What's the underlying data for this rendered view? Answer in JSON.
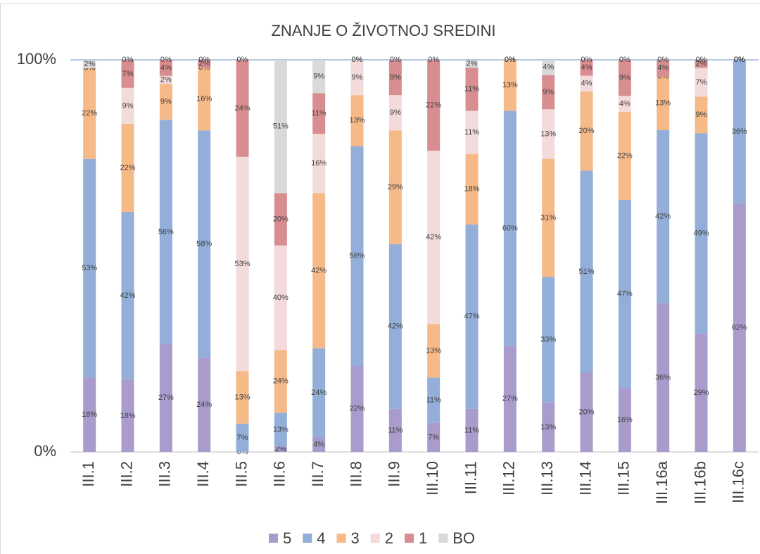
{
  "chart_data": {
    "type": "stacked100",
    "title": "ZNANJE O ŽIVOTNOJ SREDINI",
    "categories": [
      "III.1",
      "III.2",
      "III.3",
      "III.4",
      "III.5",
      "III.6",
      "III.7",
      "III.8",
      "III.9",
      "III.10",
      "III.11",
      "III.12",
      "III.13",
      "III.14",
      "III.15",
      "III.16a",
      "III.16b",
      "III.16c"
    ],
    "series": [
      {
        "name": "5",
        "color": "#a99bcb",
        "values": [
          18,
          18,
          27,
          24,
          0,
          2,
          4,
          22,
          11,
          7,
          11,
          27,
          13,
          20,
          16,
          36,
          29,
          62
        ]
      },
      {
        "name": "4",
        "color": "#93afd9",
        "values": [
          53,
          42,
          56,
          58,
          7,
          13,
          24,
          56,
          42,
          11,
          47,
          60,
          33,
          51,
          47,
          42,
          49,
          36
        ]
      },
      {
        "name": "3",
        "color": "#f6b988",
        "values": [
          22,
          22,
          9,
          16,
          13,
          24,
          42,
          13,
          29,
          13,
          18,
          13,
          31,
          20,
          22,
          13,
          9,
          0
        ]
      },
      {
        "name": "2",
        "color": "#f3dadb",
        "values": [
          0,
          9,
          2,
          0,
          53,
          40,
          16,
          9,
          9,
          42,
          11,
          0,
          13,
          4,
          4,
          0,
          7,
          0
        ]
      },
      {
        "name": "1",
        "color": "#d88e90",
        "values": [
          0,
          7,
          4,
          2,
          24,
          20,
          11,
          0,
          9,
          22,
          11,
          0,
          9,
          4,
          9,
          4,
          2,
          0
        ]
      },
      {
        "name": "BO",
        "color": "#d9d9d9",
        "values": [
          2,
          0,
          0,
          0,
          0,
          51,
          9,
          0,
          0,
          0,
          2,
          0,
          4,
          0,
          0,
          0,
          0,
          0
        ]
      }
    ],
    "value_labels": [
      [
        "18%",
        "18%",
        "27%",
        "24%",
        "0%",
        "2%",
        "4%",
        "22%",
        "11%",
        "7%",
        "11%",
        "27%",
        "13%",
        "20%",
        "16%",
        "36%",
        "29%",
        "62%"
      ],
      [
        "53%",
        "42%",
        "56%",
        "58%",
        "7%",
        "13%",
        "24%",
        "56%",
        "42%",
        "11%",
        "47%",
        "60%",
        "33%",
        "51%",
        "47%",
        "42%",
        "49%",
        "36%"
      ],
      [
        "22%",
        "22%",
        "9%",
        "16%",
        "13%",
        "24%",
        "42%",
        "13%",
        "29%",
        "13%",
        "18%",
        "13%",
        "31%",
        "20%",
        "22%",
        "13%",
        "9%",
        "0%"
      ],
      [
        "0%",
        "9%",
        "2%",
        "0%",
        "53%",
        "40%",
        "16%",
        "9%",
        "9%",
        "42%",
        "11%",
        "0%",
        "13%",
        "4%",
        "4%",
        "0%",
        "7%",
        "0%"
      ],
      [
        "0%",
        "7%",
        "4%",
        "2%",
        "24%",
        "20%",
        "11%",
        "0%",
        "9%",
        "22%",
        "11%",
        "0%",
        "9%",
        "4%",
        "9%",
        "4%",
        "2%",
        "0%"
      ],
      [
        "2%",
        "0%",
        "0%",
        "0%",
        "0%",
        "51%",
        "9%",
        "0%",
        "0%",
        "0%",
        "2%",
        "0%",
        "4%",
        "0%",
        "0%",
        "0%",
        "0%",
        "0%"
      ]
    ],
    "ylim": [
      0,
      100
    ],
    "yticks": [
      {
        "value": 0,
        "label": "0%"
      },
      {
        "value": 100,
        "label": "100%"
      }
    ],
    "legend": "bottom"
  }
}
